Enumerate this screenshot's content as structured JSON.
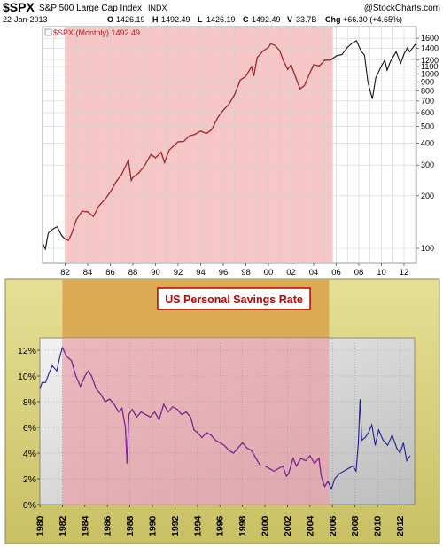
{
  "header": {
    "symbol": "$SPX",
    "name": "S&P 500 Large Cap Index",
    "exchange": "INDX",
    "copyright": "@StockCharts.com",
    "date": "22-Jan-2013",
    "open_label": "O",
    "open": "1426.19",
    "high_label": "H",
    "high": "1492.49",
    "low_label": "L",
    "low": "1426.19",
    "close_label": "C",
    "close": "1492.49",
    "volume_label": "V",
    "volume": "33.7B",
    "change_label": "Chg",
    "change": "+66.30 (+4.65%)"
  },
  "colors": {
    "spx_shade": "#f7c6c6",
    "spx_line_recession": "#b22222",
    "spx_line": "#111111",
    "savings_line": "#1f1f8f",
    "savings_shade": "#e9a0a8",
    "savings_band": "#d9a24a",
    "frame_olive": "#d7cf79",
    "title_box_border": "#c00000",
    "title_box_text": "#c00000"
  },
  "chart_data": [
    {
      "type": "line",
      "legend": "$SPX (Monthly) 1492.49",
      "legend_position": "top-left",
      "y_scale": "log",
      "ylim": [
        90,
        1700
      ],
      "xlim": [
        1980,
        2013.1
      ],
      "grid": true,
      "x_tick_labels": [
        "82",
        "84",
        "86",
        "88",
        "90",
        "92",
        "94",
        "96",
        "98",
        "00",
        "02",
        "04",
        "06",
        "08",
        "10",
        "12"
      ],
      "x_tick_years": [
        1982,
        1984,
        1986,
        1988,
        1990,
        1992,
        1994,
        1996,
        1998,
        2000,
        2002,
        2004,
        2006,
        2008,
        2010,
        2012
      ],
      "y_tick_labels": [
        "1600",
        "1400",
        "1200",
        "1100",
        "1000",
        "900",
        "800",
        "700",
        "600",
        "500",
        "400",
        "300",
        "200",
        "100"
      ],
      "y_tick_values": [
        1600,
        1400,
        1200,
        1100,
        1000,
        900,
        800,
        700,
        600,
        500,
        400,
        300,
        200,
        100
      ],
      "shaded_period": [
        1982,
        2005.7
      ],
      "x": [
        1980.0,
        1980.25,
        1980.5,
        1980.9,
        1981.3,
        1981.7,
        1982.0,
        1982.3,
        1982.6,
        1983.0,
        1983.5,
        1984.0,
        1984.5,
        1985.0,
        1985.5,
        1986.0,
        1986.5,
        1987.0,
        1987.6,
        1987.85,
        1988.0,
        1988.5,
        1989.0,
        1989.6,
        1990.0,
        1990.5,
        1990.8,
        1991.2,
        1992.0,
        1992.5,
        1993.0,
        1993.5,
        1994.0,
        1994.5,
        1995.0,
        1995.5,
        1996.0,
        1996.5,
        1997.0,
        1997.5,
        1998.0,
        1998.5,
        1998.7,
        1999.0,
        1999.5,
        2000.0,
        2000.2,
        2000.6,
        2001.0,
        2001.3,
        2001.7,
        2002.0,
        2002.5,
        2002.8,
        2003.2,
        2003.6,
        2004.0,
        2004.5,
        2005.0,
        2005.5,
        2006.0,
        2006.5,
        2007.0,
        2007.4,
        2007.8,
        2008.2,
        2008.5,
        2008.8,
        2009.0,
        2009.2,
        2009.5,
        2010.0,
        2010.3,
        2010.5,
        2010.8,
        2011.3,
        2011.7,
        2012.0,
        2012.3,
        2012.5,
        2012.8,
        2013.0
      ],
      "values": [
        107,
        99,
        122,
        129,
        133,
        118,
        113,
        111,
        122,
        146,
        163,
        162,
        152,
        175,
        190,
        210,
        240,
        265,
        320,
        245,
        255,
        270,
        295,
        345,
        330,
        355,
        310,
        365,
        408,
        410,
        440,
        450,
        470,
        455,
        480,
        560,
        620,
        670,
        760,
        920,
        970,
        1100,
        970,
        1240,
        1350,
        1420,
        1490,
        1455,
        1360,
        1200,
        1060,
        1130,
        920,
        820,
        860,
        990,
        1130,
        1110,
        1200,
        1200,
        1270,
        1290,
        1420,
        1500,
        1550,
        1350,
        1280,
        900,
        800,
        720,
        950,
        1110,
        1200,
        1050,
        1180,
        1340,
        1150,
        1300,
        1410,
        1340,
        1420,
        1480
      ]
    },
    {
      "type": "line",
      "title": "US Personal Savings Rate",
      "ylim": [
        0,
        12.5
      ],
      "xlim": [
        1980,
        2013.3
      ],
      "grid": true,
      "y_tick_labels": [
        "12%",
        "10%",
        "8%",
        "6%",
        "4%",
        "2%",
        "0%"
      ],
      "y_tick_values": [
        12,
        10,
        8,
        6,
        4,
        2,
        0
      ],
      "x_tick_labels": [
        "1980",
        "1982",
        "1984",
        "1986",
        "1988",
        "1990",
        "1992",
        "1994",
        "1996",
        "1998",
        "2000",
        "2002",
        "2004",
        "2006",
        "2008",
        "2010",
        "2012"
      ],
      "x_tick_years": [
        1980,
        1982,
        1984,
        1986,
        1988,
        1990,
        1992,
        1994,
        1996,
        1998,
        2000,
        2002,
        2004,
        2006,
        2008,
        2010,
        2012
      ],
      "shaded_period": [
        1982,
        2005.7
      ],
      "x": [
        1980.0,
        1980.2,
        1980.5,
        1980.8,
        1981.1,
        1981.5,
        1981.8,
        1982.0,
        1982.4,
        1982.8,
        1983.2,
        1983.6,
        1984.0,
        1984.3,
        1984.6,
        1985.0,
        1985.4,
        1985.8,
        1986.2,
        1986.6,
        1987.0,
        1987.3,
        1987.6,
        1987.75,
        1987.9,
        1988.2,
        1988.6,
        1989.0,
        1989.4,
        1989.8,
        1990.2,
        1990.6,
        1991.0,
        1991.4,
        1991.8,
        1992.2,
        1992.6,
        1993.0,
        1993.4,
        1993.7,
        1994.0,
        1994.4,
        1994.8,
        1995.2,
        1995.6,
        1996.0,
        1996.4,
        1996.8,
        1997.2,
        1997.6,
        1998.0,
        1998.4,
        1998.8,
        1999.2,
        1999.6,
        2000.0,
        2000.4,
        2000.8,
        2001.2,
        2001.6,
        2001.9,
        2002.1,
        2002.5,
        2002.8,
        2003.2,
        2003.6,
        2004.0,
        2004.4,
        2004.8,
        2005.0,
        2005.3,
        2005.6,
        2005.9,
        2006.2,
        2006.6,
        2007.0,
        2007.4,
        2007.8,
        2008.1,
        2008.3,
        2008.45,
        2008.6,
        2008.9,
        2009.2,
        2009.5,
        2009.8,
        2010.1,
        2010.5,
        2010.9,
        2011.3,
        2011.7,
        2012.0,
        2012.3,
        2012.6,
        2012.9
      ],
      "values": [
        9.0,
        9.5,
        9.5,
        10.2,
        10.8,
        10.4,
        11.6,
        12.2,
        11.5,
        11.2,
        10.0,
        9.2,
        10.0,
        10.4,
        10.0,
        9.0,
        8.6,
        8.0,
        8.2,
        7.8,
        7.2,
        7.5,
        6.0,
        3.2,
        7.0,
        7.4,
        6.8,
        7.2,
        7.0,
        6.8,
        7.2,
        6.6,
        7.8,
        7.2,
        7.6,
        7.4,
        7.0,
        7.2,
        6.8,
        5.8,
        5.6,
        5.2,
        5.6,
        5.4,
        5.0,
        4.8,
        4.6,
        4.2,
        4.0,
        4.4,
        4.8,
        4.4,
        4.2,
        3.6,
        3.0,
        3.0,
        2.8,
        2.6,
        2.8,
        3.0,
        2.2,
        2.4,
        3.6,
        3.0,
        3.6,
        3.4,
        3.8,
        3.2,
        3.6,
        2.2,
        1.4,
        1.8,
        1.2,
        2.0,
        2.4,
        2.6,
        2.8,
        3.0,
        2.6,
        4.8,
        8.2,
        5.0,
        5.2,
        5.6,
        6.2,
        4.6,
        5.8,
        5.0,
        4.6,
        5.4,
        4.4,
        4.0,
        4.8,
        3.4,
        3.8
      ]
    }
  ]
}
